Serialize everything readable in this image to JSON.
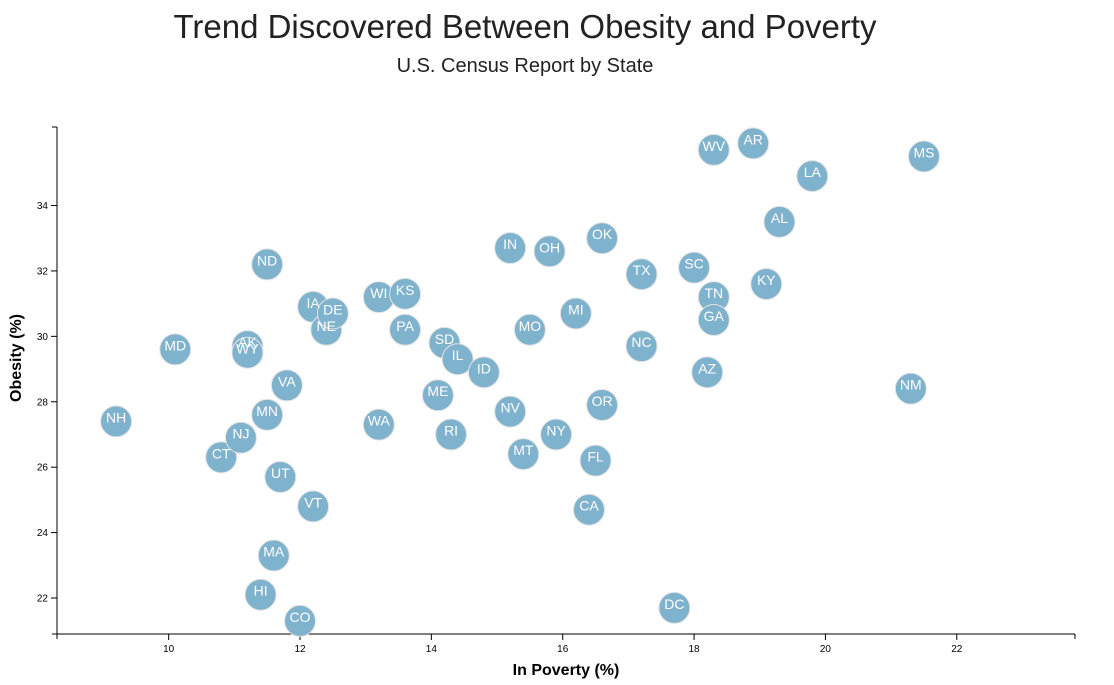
{
  "chart_data": {
    "type": "scatter",
    "title": "Trend Discovered Between Obesity and Poverty",
    "subtitle": "U.S. Census Report by State",
    "xlabel": "In Poverty (%)",
    "ylabel": "Obesity (%)",
    "xlim": [
      8.3,
      23.8
    ],
    "ylim": [
      20.9,
      36.4
    ],
    "xticks": [
      "10",
      "12",
      "14",
      "16",
      "18",
      "20",
      "22"
    ],
    "yticks": [
      "22",
      "24",
      "26",
      "28",
      "30",
      "32",
      "34"
    ],
    "grid": false,
    "marker_color": "#7fb2cc",
    "label_color": "#ffffff",
    "points": [
      {
        "label": "NH",
        "x": 9.2,
        "y": 27.4
      },
      {
        "label": "MD",
        "x": 10.1,
        "y": 29.6
      },
      {
        "label": "CT",
        "x": 10.8,
        "y": 26.3
      },
      {
        "label": "NJ",
        "x": 11.1,
        "y": 26.9
      },
      {
        "label": "AK",
        "x": 11.2,
        "y": 29.7
      },
      {
        "label": "WY",
        "x": 11.2,
        "y": 29.5
      },
      {
        "label": "HI",
        "x": 11.4,
        "y": 22.1
      },
      {
        "label": "ND",
        "x": 11.5,
        "y": 32.2
      },
      {
        "label": "MN",
        "x": 11.5,
        "y": 27.6
      },
      {
        "label": "MA",
        "x": 11.6,
        "y": 23.3
      },
      {
        "label": "UT",
        "x": 11.7,
        "y": 25.7
      },
      {
        "label": "VA",
        "x": 11.8,
        "y": 28.5
      },
      {
        "label": "CO",
        "x": 12.0,
        "y": 21.3
      },
      {
        "label": "IA",
        "x": 12.2,
        "y": 30.9
      },
      {
        "label": "VT",
        "x": 12.2,
        "y": 24.8
      },
      {
        "label": "NE",
        "x": 12.4,
        "y": 30.2
      },
      {
        "label": "DE",
        "x": 12.5,
        "y": 30.7
      },
      {
        "label": "WI",
        "x": 13.2,
        "y": 31.2
      },
      {
        "label": "WA",
        "x": 13.2,
        "y": 27.3
      },
      {
        "label": "KS",
        "x": 13.6,
        "y": 31.3
      },
      {
        "label": "PA",
        "x": 13.6,
        "y": 30.2
      },
      {
        "label": "ME",
        "x": 14.1,
        "y": 28.2
      },
      {
        "label": "SD",
        "x": 14.2,
        "y": 29.8
      },
      {
        "label": "IL",
        "x": 14.4,
        "y": 29.3
      },
      {
        "label": "RI",
        "x": 14.3,
        "y": 27.0
      },
      {
        "label": "ID",
        "x": 14.8,
        "y": 28.9
      },
      {
        "label": "IN",
        "x": 15.2,
        "y": 32.7
      },
      {
        "label": "NV",
        "x": 15.2,
        "y": 27.7
      },
      {
        "label": "MT",
        "x": 15.4,
        "y": 26.4
      },
      {
        "label": "MO",
        "x": 15.5,
        "y": 30.2
      },
      {
        "label": "OH",
        "x": 15.8,
        "y": 32.6
      },
      {
        "label": "NY",
        "x": 15.9,
        "y": 27.0
      },
      {
        "label": "MI",
        "x": 16.2,
        "y": 30.7
      },
      {
        "label": "CA",
        "x": 16.4,
        "y": 24.7
      },
      {
        "label": "FL",
        "x": 16.5,
        "y": 26.2
      },
      {
        "label": "OK",
        "x": 16.6,
        "y": 33.0
      },
      {
        "label": "OR",
        "x": 16.6,
        "y": 27.9
      },
      {
        "label": "TX",
        "x": 17.2,
        "y": 31.9
      },
      {
        "label": "NC",
        "x": 17.2,
        "y": 29.7
      },
      {
        "label": "DC",
        "x": 17.7,
        "y": 21.7
      },
      {
        "label": "SC",
        "x": 18.0,
        "y": 32.1
      },
      {
        "label": "AZ",
        "x": 18.2,
        "y": 28.9
      },
      {
        "label": "WV",
        "x": 18.3,
        "y": 35.7
      },
      {
        "label": "TN",
        "x": 18.3,
        "y": 31.2
      },
      {
        "label": "GA",
        "x": 18.3,
        "y": 30.5
      },
      {
        "label": "AR",
        "x": 18.9,
        "y": 35.9
      },
      {
        "label": "KY",
        "x": 19.1,
        "y": 31.6
      },
      {
        "label": "AL",
        "x": 19.3,
        "y": 33.5
      },
      {
        "label": "LA",
        "x": 19.8,
        "y": 34.9
      },
      {
        "label": "NM",
        "x": 21.3,
        "y": 28.4
      },
      {
        "label": "MS",
        "x": 21.5,
        "y": 35.5
      }
    ]
  }
}
